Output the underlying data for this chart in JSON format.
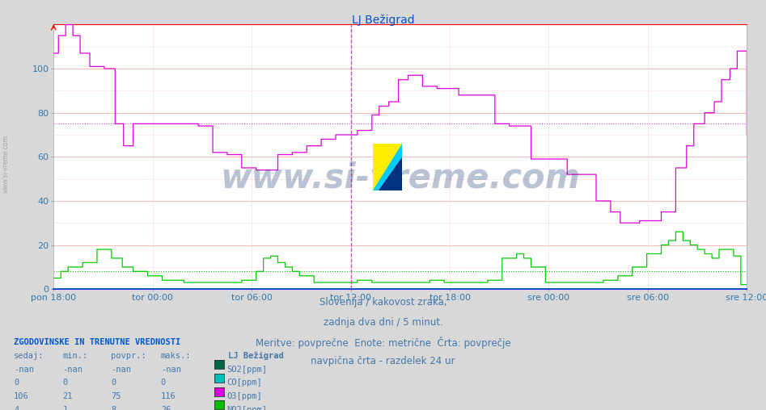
{
  "title": "LJ Bežigrad",
  "background_color": "#d8d8d8",
  "plot_bg_color": "#ffffff",
  "title_color": "#0055cc",
  "title_fontsize": 10,
  "ylim": [
    0,
    120
  ],
  "yticks": [
    0,
    20,
    40,
    60,
    80,
    100
  ],
  "xtick_labels": [
    "pon 18:00",
    "tor 00:00",
    "tor 06:00",
    "tor 12:00",
    "tor 18:00",
    "sre 00:00",
    "sre 06:00",
    "sre 12:00"
  ],
  "tick_color": "#3377aa",
  "watermark_text": "www.si-vreme.com",
  "watermark_color": "#1a3a6e",
  "watermark_alpha": 0.3,
  "watermark_fontsize": 30,
  "subtitle_lines": [
    "Slovenija / kakovost zraka,",
    "zadnja dva dni / 5 minut.",
    "Meritve: povprečne  Enote: metrične  Črta: povprečje",
    "navpična črta - razdelek 24 ur"
  ],
  "subtitle_color": "#4477aa",
  "subtitle_fontsize": 8.5,
  "table_header": "ZGODOVINSKE IN TRENUTNE VREDNOSTI",
  "table_cols": [
    "sedaj:",
    "min.:",
    "povpr.:",
    "maks.:"
  ],
  "table_data": [
    [
      "-nan",
      "-nan",
      "-nan",
      "-nan",
      "SO2[ppm]",
      "#006644"
    ],
    [
      "0",
      "0",
      "0",
      "0",
      "CO[ppm]",
      "#00bbbb"
    ],
    [
      "106",
      "21",
      "75",
      "116",
      "O3[ppm]",
      "#dd00dd"
    ],
    [
      "4",
      "1",
      "8",
      "26",
      "NO2[ppm]",
      "#00bb00"
    ]
  ],
  "legend_label": "LJ Bežigrad",
  "o3_avg_line": 75,
  "no2_avg_line": 8,
  "o3_color": "#dd00dd",
  "no2_color": "#00cc00",
  "so2_color": "#006644",
  "co_color": "#00bbbb",
  "vline_color": "#cc44cc",
  "grid_major_color": "#ffaaaa",
  "grid_minor_color": "#ffdddd",
  "axis_bottom_color": "#0000ff",
  "axis_top_color": "#ff0000",
  "n_points": 576
}
